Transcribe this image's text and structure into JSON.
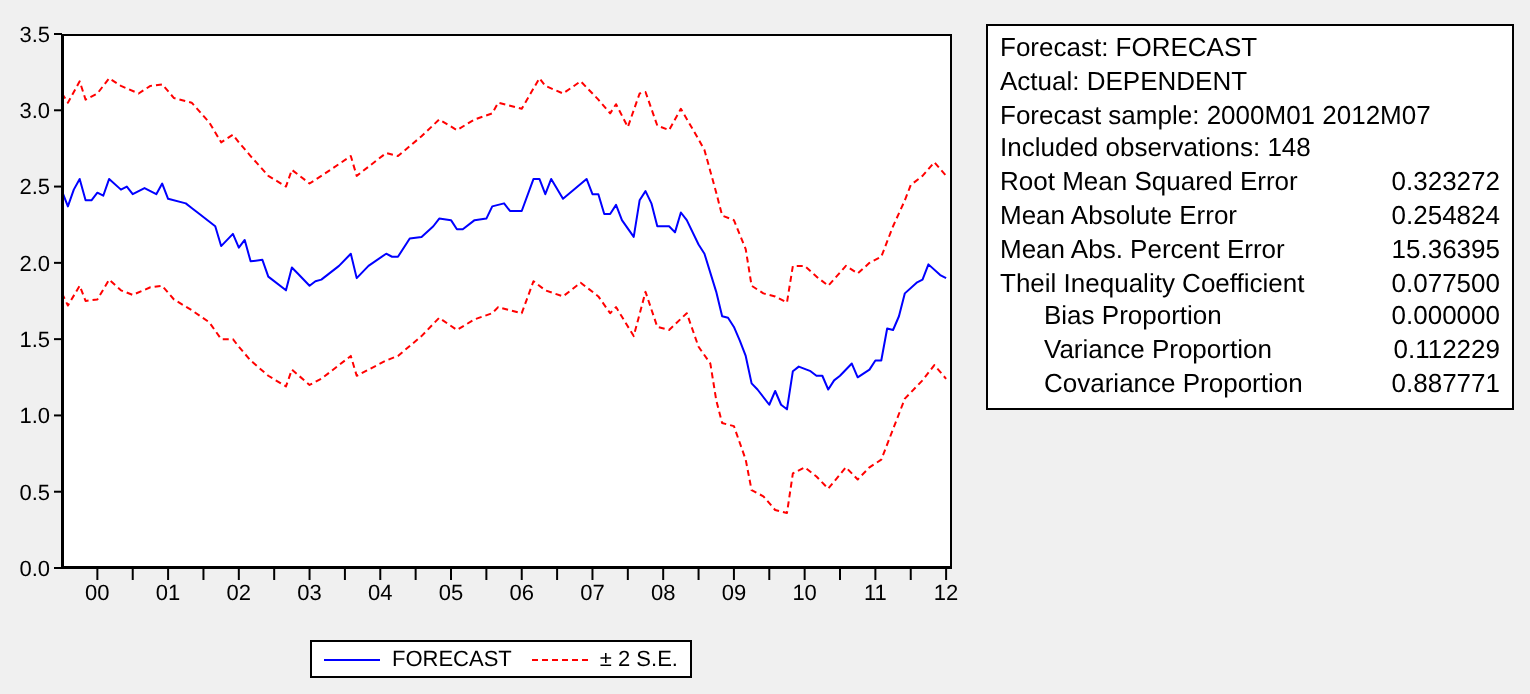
{
  "chart_data": {
    "type": "line",
    "xlim": [
      "2000-01",
      "2012-08"
    ],
    "xticks": [
      {
        "value": "2000-07",
        "label": "00"
      },
      {
        "value": "2001-07",
        "label": "01"
      },
      {
        "value": "2002-07",
        "label": "02"
      },
      {
        "value": "2003-07",
        "label": "03"
      },
      {
        "value": "2004-07",
        "label": "04"
      },
      {
        "value": "2005-07",
        "label": "05"
      },
      {
        "value": "2006-07",
        "label": "06"
      },
      {
        "value": "2007-07",
        "label": "07"
      },
      {
        "value": "2008-07",
        "label": "08"
      },
      {
        "value": "2009-07",
        "label": "09"
      },
      {
        "value": "2010-07",
        "label": "10"
      },
      {
        "value": "2011-07",
        "label": "11"
      },
      {
        "value": "2012-07",
        "label": "12"
      },
      {
        "value": "2001-01",
        "label": null
      },
      {
        "value": "2002-01",
        "label": null
      },
      {
        "value": "2003-01",
        "label": null
      },
      {
        "value": "2004-01",
        "label": null
      },
      {
        "value": "2005-01",
        "label": null
      },
      {
        "value": "2006-01",
        "label": null
      },
      {
        "value": "2007-01",
        "label": null
      },
      {
        "value": "2008-01",
        "label": null
      },
      {
        "value": "2009-01",
        "label": null
      },
      {
        "value": "2010-01",
        "label": null
      },
      {
        "value": "2011-01",
        "label": null
      },
      {
        "value": "2012-01",
        "label": null
      }
    ],
    "ylim": [
      0,
      3.5
    ],
    "yticks": [
      {
        "value": 0,
        "label": "0.0"
      },
      {
        "value": 0.5,
        "label": "0.5"
      },
      {
        "value": 1,
        "label": "1.0"
      },
      {
        "value": 1.5,
        "label": "1.5"
      },
      {
        "value": 2,
        "label": "2.0"
      },
      {
        "value": 2.5,
        "label": "2.5"
      },
      {
        "value": 3,
        "label": "3.0"
      },
      {
        "value": 3.5,
        "label": "3.5"
      }
    ],
    "grid": false,
    "legend": "bottom",
    "marker": "none",
    "series": [
      {
        "name": "FORECAST",
        "color": "#0000ff",
        "line_style": "solid",
        "x": [
          "2000-01",
          "2000-02",
          "2000-03",
          "2000-04",
          "2000-05",
          "2000-06",
          "2000-07",
          "2000-08",
          "2000-09",
          "2000-11",
          "2000-12",
          "2001-01",
          "2001-03",
          "2001-05",
          "2001-06",
          "2001-07",
          "2001-10",
          "2001-11",
          "2001-12",
          "2002-03",
          "2002-04",
          "2002-06",
          "2002-07",
          "2002-08",
          "2002-09",
          "2002-11",
          "2002-12",
          "2003-03",
          "2003-04",
          "2003-05",
          "2003-07",
          "2003-08",
          "2003-09",
          "2003-12",
          "2004-02",
          "2004-03",
          "2004-05",
          "2004-08",
          "2004-09",
          "2004-10",
          "2004-12",
          "2005-02",
          "2005-04",
          "2005-05",
          "2005-07",
          "2005-08",
          "2005-09",
          "2005-11",
          "2006-01",
          "2006-02",
          "2006-04",
          "2006-05",
          "2006-07",
          "2006-09",
          "2006-10",
          "2006-11",
          "2006-12",
          "2007-02",
          "2007-06",
          "2007-07",
          "2007-08",
          "2007-09",
          "2007-10",
          "2007-11",
          "2007-12",
          "2008-02",
          "2008-03",
          "2008-04",
          "2008-05",
          "2008-06",
          "2008-08",
          "2008-09",
          "2008-10",
          "2008-11",
          "2009-01",
          "2009-02",
          "2009-04",
          "2009-05",
          "2009-06",
          "2009-07",
          "2009-08",
          "2009-09",
          "2009-10",
          "2009-11",
          "2010-01",
          "2010-02",
          "2010-03",
          "2010-04",
          "2010-05",
          "2010-06",
          "2010-08",
          "2010-09",
          "2010-10",
          "2010-11",
          "2010-12",
          "2011-01",
          "2011-03",
          "2011-04",
          "2011-06",
          "2011-07",
          "2011-08",
          "2011-09",
          "2011-10",
          "2011-11",
          "2011-12",
          "2012-02",
          "2012-03",
          "2012-04",
          "2012-06",
          "2012-07"
        ],
        "values": [
          2.47,
          2.37,
          2.48,
          2.55,
          2.41,
          2.41,
          2.46,
          2.44,
          2.55,
          2.48,
          2.5,
          2.45,
          2.49,
          2.45,
          2.52,
          2.42,
          2.39,
          2.36,
          2.33,
          2.24,
          2.11,
          2.19,
          2.1,
          2.15,
          2.01,
          2.02,
          1.91,
          1.82,
          1.97,
          1.93,
          1.85,
          1.88,
          1.89,
          1.98,
          2.06,
          1.9,
          1.98,
          2.06,
          2.04,
          2.04,
          2.16,
          2.17,
          2.24,
          2.29,
          2.28,
          2.22,
          2.22,
          2.28,
          2.29,
          2.37,
          2.39,
          2.34,
          2.34,
          2.55,
          2.55,
          2.45,
          2.55,
          2.42,
          2.55,
          2.45,
          2.45,
          2.32,
          2.32,
          2.38,
          2.28,
          2.17,
          2.41,
          2.47,
          2.39,
          2.24,
          2.24,
          2.2,
          2.33,
          2.28,
          2.12,
          2.06,
          1.81,
          1.65,
          1.64,
          1.58,
          1.49,
          1.39,
          1.21,
          1.17,
          1.07,
          1.16,
          1.07,
          1.04,
          1.29,
          1.32,
          1.29,
          1.26,
          1.26,
          1.17,
          1.23,
          1.26,
          1.34,
          1.25,
          1.3,
          1.36,
          1.36,
          1.57,
          1.56,
          1.65,
          1.8,
          1.87,
          1.89,
          1.99,
          1.92,
          1.9
        ]
      },
      {
        "name": "± 2 S.E.",
        "color": "#ff0000",
        "line_style": "dashed",
        "x": [
          "2000-01",
          "2000-02",
          "2000-04",
          "2000-05",
          "2000-07",
          "2000-09",
          "2000-11",
          "2001-02",
          "2001-04",
          "2001-06",
          "2001-08",
          "2001-11",
          "2002-02",
          "2002-04",
          "2002-06",
          "2002-07",
          "2002-09",
          "2002-12",
          "2003-03",
          "2003-04",
          "2003-07",
          "2003-09",
          "2004-02",
          "2004-03",
          "2004-08",
          "2004-10",
          "2005-02",
          "2005-05",
          "2005-08",
          "2005-11",
          "2006-02",
          "2006-03",
          "2006-07",
          "2006-10",
          "2006-11",
          "2007-02",
          "2007-05",
          "2007-08",
          "2007-10",
          "2007-11",
          "2008-01",
          "2008-03",
          "2008-04",
          "2008-06",
          "2008-08",
          "2008-10",
          "2009-01",
          "2009-02",
          "2009-04",
          "2009-05",
          "2009-07",
          "2009-09",
          "2009-10",
          "2009-12",
          "2010-02",
          "2010-04",
          "2010-05",
          "2010-07",
          "2010-09",
          "2010-11",
          "2011-02",
          "2011-04",
          "2011-06",
          "2011-08",
          "2011-10",
          "2011-12",
          "2012-01",
          "2012-03",
          "2012-05",
          "2012-07"
        ],
        "values": [
          3.11,
          3.05,
          3.19,
          3.07,
          3.11,
          3.21,
          3.16,
          3.11,
          3.16,
          3.17,
          3.08,
          3.05,
          2.92,
          2.79,
          2.84,
          2.79,
          2.7,
          2.57,
          2.5,
          2.61,
          2.52,
          2.57,
          2.7,
          2.57,
          2.72,
          2.7,
          2.83,
          2.94,
          2.87,
          2.94,
          2.98,
          3.05,
          3.01,
          3.21,
          3.16,
          3.11,
          3.19,
          3.07,
          2.98,
          3.04,
          2.89,
          3.11,
          3.12,
          2.9,
          2.87,
          3.01,
          2.81,
          2.74,
          2.46,
          2.31,
          2.28,
          2.09,
          1.85,
          1.8,
          1.78,
          1.74,
          1.98,
          1.98,
          1.91,
          1.85,
          1.98,
          1.93,
          2.0,
          2.04,
          2.24,
          2.41,
          2.51,
          2.57,
          2.66,
          2.57
        ]
      },
      {
        "color": "#ff0000",
        "line_style": "dashed",
        "x": [
          "2000-01",
          "2000-02",
          "2000-04",
          "2000-05",
          "2000-07",
          "2000-09",
          "2000-11",
          "2001-01",
          "2001-04",
          "2001-06",
          "2001-08",
          "2001-11",
          "2002-02",
          "2002-04",
          "2002-06",
          "2002-07",
          "2002-09",
          "2002-12",
          "2003-03",
          "2003-04",
          "2003-07",
          "2003-09",
          "2004-02",
          "2004-03",
          "2004-08",
          "2004-10",
          "2005-02",
          "2005-05",
          "2005-08",
          "2005-11",
          "2006-02",
          "2006-03",
          "2006-07",
          "2006-09",
          "2006-11",
          "2007-02",
          "2007-05",
          "2007-08",
          "2007-10",
          "2007-11",
          "2008-02",
          "2008-04",
          "2008-06",
          "2008-08",
          "2008-11",
          "2009-01",
          "2009-03",
          "2009-04",
          "2009-05",
          "2009-07",
          "2009-09",
          "2009-10",
          "2009-12",
          "2010-02",
          "2010-04",
          "2010-05",
          "2010-07",
          "2010-09",
          "2010-11",
          "2011-02",
          "2011-04",
          "2011-06",
          "2011-08",
          "2011-10",
          "2011-12",
          "2012-01",
          "2012-03",
          "2012-05",
          "2012-07"
        ],
        "values": [
          1.8,
          1.72,
          1.85,
          1.75,
          1.76,
          1.89,
          1.82,
          1.79,
          1.84,
          1.85,
          1.76,
          1.69,
          1.61,
          1.5,
          1.5,
          1.45,
          1.36,
          1.26,
          1.19,
          1.3,
          1.2,
          1.24,
          1.39,
          1.26,
          1.36,
          1.39,
          1.52,
          1.64,
          1.56,
          1.63,
          1.67,
          1.71,
          1.67,
          1.88,
          1.82,
          1.78,
          1.87,
          1.78,
          1.67,
          1.71,
          1.52,
          1.81,
          1.58,
          1.56,
          1.67,
          1.45,
          1.34,
          1.1,
          0.95,
          0.93,
          0.71,
          0.51,
          0.47,
          0.38,
          0.36,
          0.62,
          0.66,
          0.6,
          0.52,
          0.66,
          0.58,
          0.66,
          0.71,
          0.91,
          1.11,
          1.15,
          1.23,
          1.33,
          1.24
        ]
      }
    ],
    "annotations": [
      "Forecast: FORECAST",
      "Actual: DEPENDENT",
      "Forecast sample: 2000M01 2012M07",
      "Included observations: 148",
      "Root Mean Squared Error 0.323272",
      "Mean Absolute Error 0.254824",
      "Mean Abs. Percent Error 15.36395",
      "Theil Inequality Coefficient 0.077500",
      "Bias Proportion 0.000000",
      "Variance Proportion 0.112229",
      "Covariance Proportion 0.887771"
    ]
  }
}
